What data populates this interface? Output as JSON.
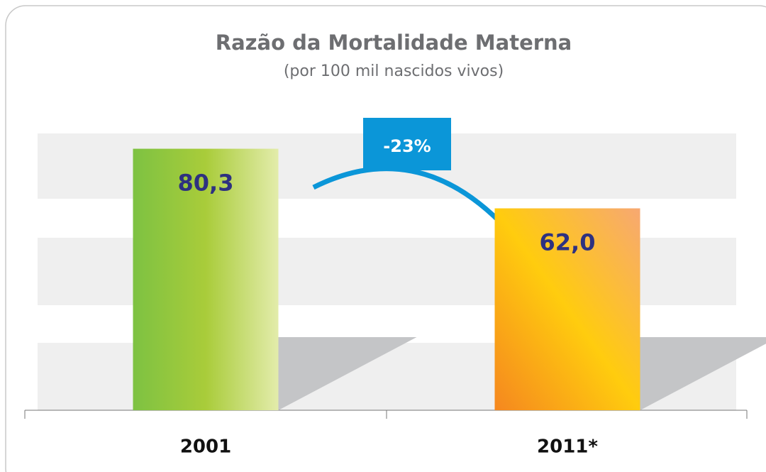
{
  "chart_data": {
    "type": "bar",
    "title": "Razão da Mortalidade Materna",
    "subtitle": "(por 100 mil nascidos vivos)",
    "categories": [
      "2001",
      "2011*"
    ],
    "values": [
      80.3,
      62.0
    ],
    "value_labels": [
      "80,3",
      "62,0"
    ],
    "annotation": "-23%",
    "ylim": [
      0,
      85
    ]
  }
}
